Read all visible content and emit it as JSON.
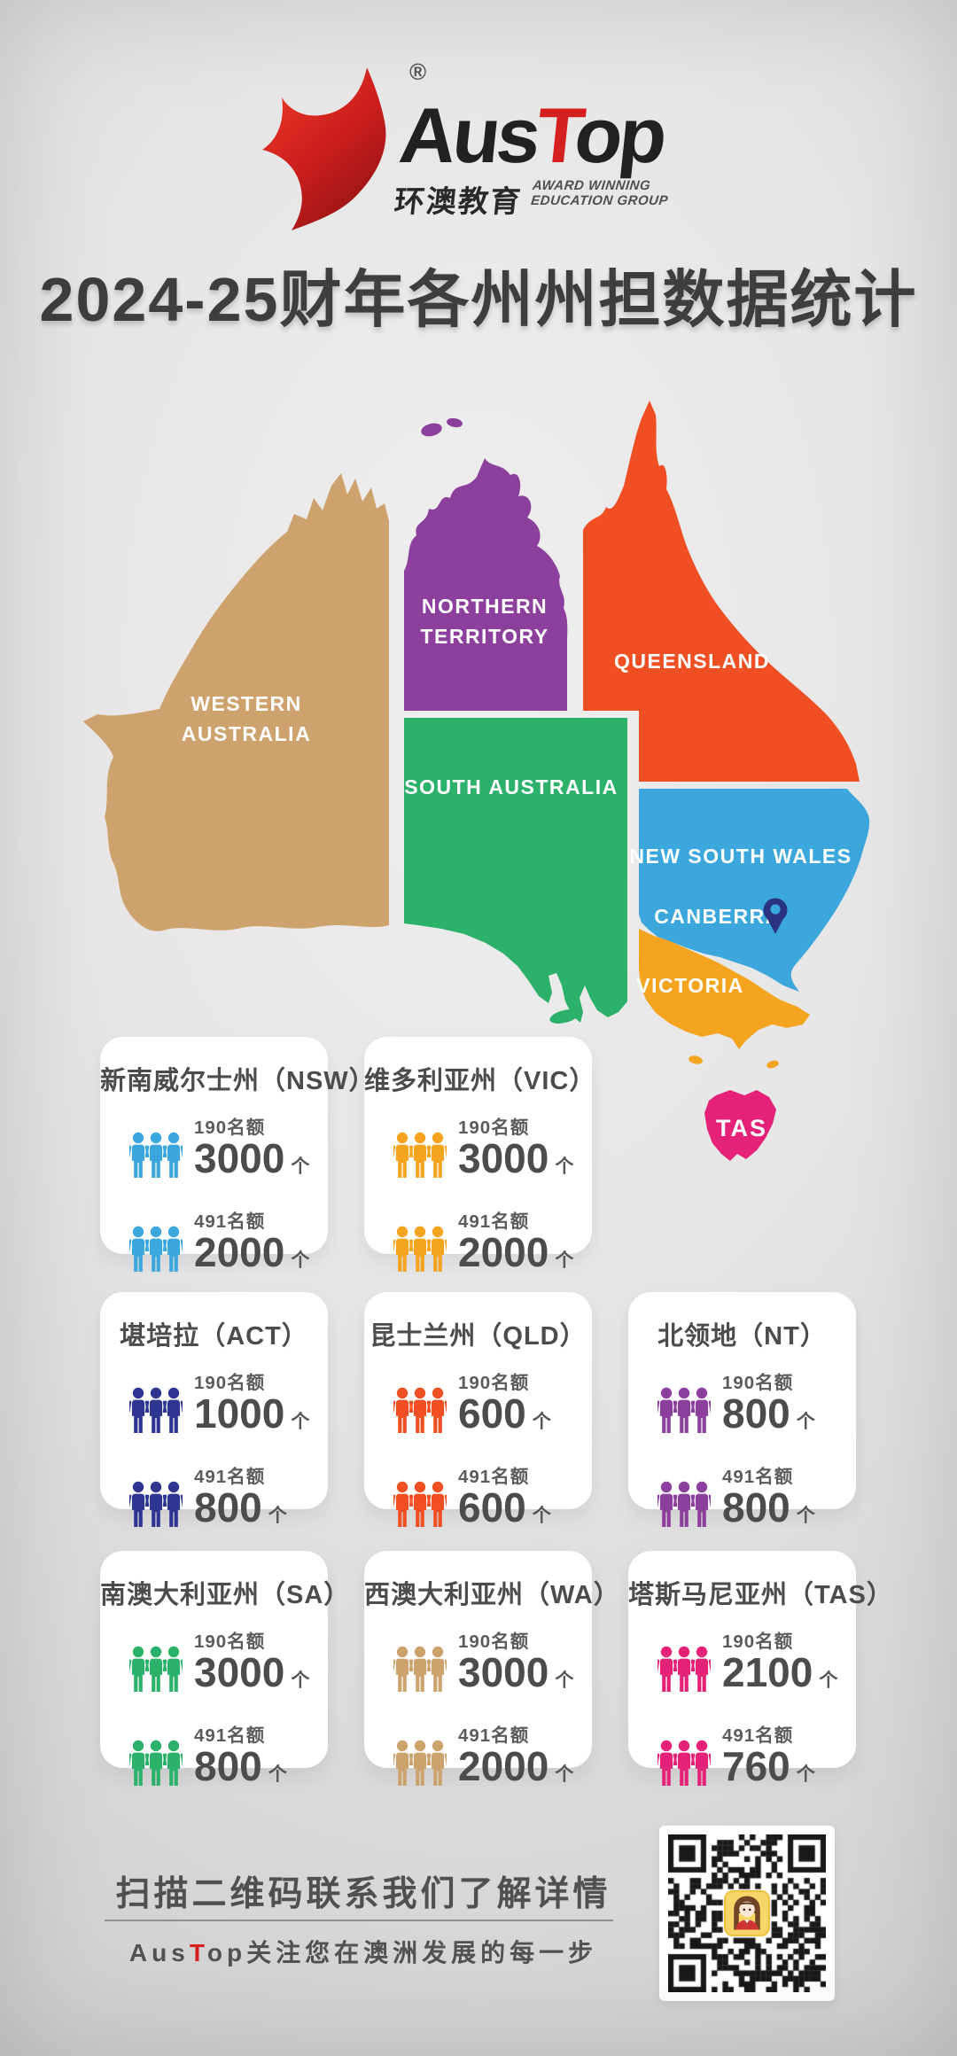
{
  "brand": {
    "registered_mark": "®",
    "name_prefix": "Aus",
    "name_accent": "T",
    "name_suffix": "op",
    "accent_color": "#D6201F",
    "chinese_name": "环澳教育",
    "tagline_line1": "AWARD WINNING",
    "tagline_line2": "EDUCATION GROUP"
  },
  "title": "2024-25财年各州州担数据统计",
  "map": {
    "canberra_label": "CANBERRA",
    "pin_color": "#2A3380",
    "states": [
      {
        "id": "wa",
        "label_lines": [
          "WESTERN",
          "AUSTRALIA"
        ],
        "color": "#CDA26D"
      },
      {
        "id": "nt",
        "label_lines": [
          "NORTHERN",
          "TERRITORY"
        ],
        "color": "#8C3F9D"
      },
      {
        "id": "qld",
        "label_lines": [
          "QUEENSLAND"
        ],
        "color": "#F04E23"
      },
      {
        "id": "sa",
        "label_lines": [
          "SOUTH AUSTRALIA"
        ],
        "color": "#2BB169"
      },
      {
        "id": "nsw",
        "label_lines": [
          "NEW SOUTH WALES"
        ],
        "color": "#3BA7DC"
      },
      {
        "id": "vic",
        "label_lines": [
          "VICTORIA"
        ],
        "color": "#F5A41F"
      },
      {
        "id": "tas",
        "label_lines": [
          "TAS"
        ],
        "color": "#E52277"
      }
    ]
  },
  "cards": [
    {
      "title": "新南威尔士州（NSW）",
      "color": "#3BA7DC",
      "stats": [
        {
          "label": "190名额",
          "value": "3000",
          "unit": "个"
        },
        {
          "label": "491名额",
          "value": "2000",
          "unit": "个"
        }
      ]
    },
    {
      "title": "维多利亚州（VIC）",
      "color": "#F5A41F",
      "stats": [
        {
          "label": "190名额",
          "value": "3000",
          "unit": "个"
        },
        {
          "label": "491名额",
          "value": "2000",
          "unit": "个"
        }
      ]
    },
    {
      "title": "堪培拉（ACT）",
      "color": "#2D3590",
      "stats": [
        {
          "label": "190名额",
          "value": "1000",
          "unit": "个"
        },
        {
          "label": "491名额",
          "value": "800",
          "unit": "个"
        }
      ]
    },
    {
      "title": "昆士兰州（QLD）",
      "color": "#F04E23",
      "stats": [
        {
          "label": "190名额",
          "value": "600",
          "unit": "个"
        },
        {
          "label": "491名额",
          "value": "600",
          "unit": "个"
        }
      ]
    },
    {
      "title": "北领地（NT）",
      "color": "#8C3F9D",
      "stats": [
        {
          "label": "190名额",
          "value": "800",
          "unit": "个"
        },
        {
          "label": "491名额",
          "value": "800",
          "unit": "个"
        }
      ]
    },
    {
      "title": "南澳大利亚州（SA）",
      "color": "#2BB169",
      "stats": [
        {
          "label": "190名额",
          "value": "3000",
          "unit": "个"
        },
        {
          "label": "491名额",
          "value": "800",
          "unit": "个"
        }
      ]
    },
    {
      "title": "西澳大利亚州（WA）",
      "color": "#CDA26D",
      "stats": [
        {
          "label": "190名额",
          "value": "3000",
          "unit": "个"
        },
        {
          "label": "491名额",
          "value": "2000",
          "unit": "个"
        }
      ]
    },
    {
      "title": "塔斯马尼亚州（TAS）",
      "color": "#E52277",
      "stats": [
        {
          "label": "190名额",
          "value": "2100",
          "unit": "个"
        },
        {
          "label": "491名额",
          "value": "760",
          "unit": "个"
        }
      ]
    }
  ],
  "footer": {
    "headline": "扫描二维码联系我们了解详情",
    "subline_prefix": "Aus",
    "subline_accent": "T",
    "subline_suffix": "op关注您在澳洲发展的每一步",
    "accent_color": "#D6201F"
  }
}
